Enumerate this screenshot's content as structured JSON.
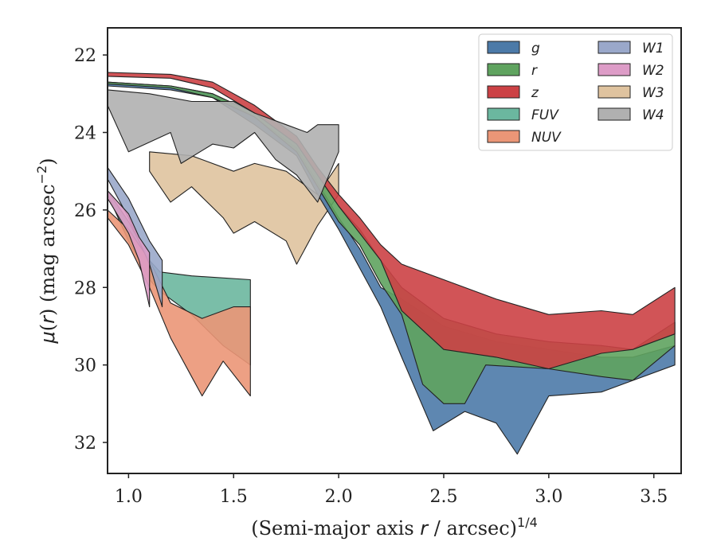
{
  "chart_data": {
    "type": "area",
    "xlabel": "(Semi-major axis r / arcsec)^1/4",
    "ylabel": "μ(r) (mag arcsec^−2)",
    "xlim": [
      0.9,
      3.63
    ],
    "ylim": [
      32.8,
      21.3
    ],
    "y_inverted": true,
    "xticks": [
      "1.0",
      "1.5",
      "2.0",
      "2.5",
      "3.0",
      "3.5"
    ],
    "yticks": [
      "22",
      "24",
      "26",
      "28",
      "30",
      "32"
    ],
    "xtick_values": [
      1.0,
      1.5,
      2.0,
      2.5,
      3.0,
      3.5
    ],
    "ytick_values": [
      22,
      24,
      26,
      28,
      30,
      32
    ],
    "grid": false,
    "legend_position": "top-right",
    "legend_columns": 2,
    "series": [
      {
        "name": "g",
        "color": "#4c7aa8",
        "upper": [
          [
            0.9,
            22.7
          ],
          [
            1.2,
            22.8
          ],
          [
            1.4,
            23.0
          ],
          [
            1.6,
            23.6
          ],
          [
            1.8,
            24.4
          ],
          [
            1.9,
            25.3
          ],
          [
            2.0,
            26.2
          ],
          [
            2.1,
            27.0
          ],
          [
            2.2,
            28.0
          ],
          [
            2.3,
            28.3
          ],
          [
            2.5,
            29.0
          ],
          [
            2.75,
            29.4
          ],
          [
            3.0,
            29.6
          ],
          [
            3.25,
            29.8
          ],
          [
            3.4,
            29.8
          ],
          [
            3.6,
            29.5
          ]
        ],
        "lower": [
          [
            0.9,
            22.8
          ],
          [
            1.2,
            22.9
          ],
          [
            1.4,
            23.1
          ],
          [
            1.6,
            23.8
          ],
          [
            1.8,
            24.6
          ],
          [
            1.9,
            25.6
          ],
          [
            2.0,
            26.5
          ],
          [
            2.1,
            27.5
          ],
          [
            2.2,
            28.5
          ],
          [
            2.3,
            29.8
          ],
          [
            2.45,
            31.7
          ],
          [
            2.6,
            31.2
          ],
          [
            2.75,
            31.5
          ],
          [
            2.85,
            32.3
          ],
          [
            3.0,
            30.8
          ],
          [
            3.25,
            30.7
          ],
          [
            3.4,
            30.4
          ],
          [
            3.6,
            30.0
          ]
        ]
      },
      {
        "name": "r",
        "color": "#5fa35f",
        "upper": [
          [
            0.9,
            22.7
          ],
          [
            1.2,
            22.8
          ],
          [
            1.4,
            23.0
          ],
          [
            1.6,
            23.5
          ],
          [
            1.8,
            24.3
          ],
          [
            1.9,
            25.1
          ],
          [
            2.0,
            25.9
          ],
          [
            2.1,
            26.5
          ],
          [
            2.2,
            27.3
          ],
          [
            2.3,
            28.0
          ],
          [
            2.5,
            28.8
          ],
          [
            2.75,
            29.2
          ],
          [
            3.0,
            29.4
          ],
          [
            3.25,
            29.5
          ],
          [
            3.4,
            29.6
          ],
          [
            3.6,
            28.9
          ]
        ],
        "lower": [
          [
            0.9,
            22.75
          ],
          [
            1.2,
            22.85
          ],
          [
            1.4,
            23.1
          ],
          [
            1.6,
            23.6
          ],
          [
            1.8,
            24.5
          ],
          [
            1.9,
            25.4
          ],
          [
            2.0,
            26.3
          ],
          [
            2.1,
            26.9
          ],
          [
            2.2,
            27.9
          ],
          [
            2.3,
            28.7
          ],
          [
            2.4,
            30.5
          ],
          [
            2.5,
            31.0
          ],
          [
            2.6,
            31.0
          ],
          [
            2.7,
            30.0
          ],
          [
            3.0,
            30.1
          ],
          [
            3.25,
            30.3
          ],
          [
            3.4,
            30.4
          ],
          [
            3.6,
            29.5
          ]
        ]
      },
      {
        "name": "z",
        "color": "#cc4145",
        "upper": [
          [
            0.9,
            22.45
          ],
          [
            1.2,
            22.5
          ],
          [
            1.4,
            22.7
          ],
          [
            1.6,
            23.3
          ],
          [
            1.8,
            24.1
          ],
          [
            1.9,
            24.9
          ],
          [
            2.0,
            25.6
          ],
          [
            2.1,
            26.2
          ],
          [
            2.2,
            26.9
          ],
          [
            2.3,
            27.4
          ],
          [
            2.5,
            27.8
          ],
          [
            2.75,
            28.3
          ],
          [
            3.0,
            28.7
          ],
          [
            3.25,
            28.6
          ],
          [
            3.4,
            28.7
          ],
          [
            3.6,
            28.0
          ]
        ],
        "lower": [
          [
            0.9,
            22.55
          ],
          [
            1.2,
            22.6
          ],
          [
            1.4,
            22.85
          ],
          [
            1.6,
            23.5
          ],
          [
            1.8,
            24.3
          ],
          [
            1.9,
            25.1
          ],
          [
            2.0,
            25.9
          ],
          [
            2.1,
            26.6
          ],
          [
            2.2,
            27.3
          ],
          [
            2.3,
            28.6
          ],
          [
            2.5,
            29.6
          ],
          [
            2.75,
            29.8
          ],
          [
            3.0,
            30.1
          ],
          [
            3.25,
            29.7
          ],
          [
            3.4,
            29.6
          ],
          [
            3.6,
            29.2
          ]
        ]
      },
      {
        "name": "FUV",
        "color": "#6bb79f",
        "upper": [
          [
            0.9,
            25.5
          ],
          [
            1.0,
            26.3
          ],
          [
            1.1,
            27.3
          ],
          [
            1.15,
            27.6
          ],
          [
            1.3,
            27.7
          ],
          [
            1.58,
            27.8
          ]
        ],
        "lower": [
          [
            0.9,
            25.6
          ],
          [
            1.0,
            26.8
          ],
          [
            1.1,
            27.8
          ],
          [
            1.15,
            28.1
          ],
          [
            1.3,
            28.7
          ],
          [
            1.45,
            29.5
          ],
          [
            1.58,
            30.0
          ]
        ]
      },
      {
        "name": "NUV",
        "color": "#eb9677",
        "upper": [
          [
            0.9,
            26.0
          ],
          [
            1.0,
            26.5
          ],
          [
            1.1,
            27.3
          ],
          [
            1.2,
            28.4
          ],
          [
            1.35,
            28.8
          ],
          [
            1.5,
            28.5
          ],
          [
            1.58,
            28.5
          ]
        ],
        "lower": [
          [
            0.9,
            26.2
          ],
          [
            1.0,
            26.9
          ],
          [
            1.1,
            28.0
          ],
          [
            1.2,
            29.3
          ],
          [
            1.3,
            30.3
          ],
          [
            1.35,
            30.8
          ],
          [
            1.45,
            29.9
          ],
          [
            1.58,
            30.8
          ]
        ]
      },
      {
        "name": "W1",
        "color": "#9aa8ca",
        "upper": [
          [
            0.9,
            24.9
          ],
          [
            1.0,
            25.7
          ],
          [
            1.1,
            26.8
          ],
          [
            1.16,
            27.3
          ]
        ],
        "lower": [
          [
            0.9,
            25.2
          ],
          [
            1.0,
            26.2
          ],
          [
            1.1,
            27.4
          ],
          [
            1.16,
            28.5
          ]
        ]
      },
      {
        "name": "W2",
        "color": "#dd9cc7",
        "upper": [
          [
            0.9,
            25.5
          ],
          [
            1.0,
            26.1
          ],
          [
            1.05,
            26.7
          ],
          [
            1.1,
            27.1
          ]
        ],
        "lower": [
          [
            0.9,
            25.7
          ],
          [
            1.0,
            26.6
          ],
          [
            1.05,
            27.3
          ],
          [
            1.1,
            28.5
          ]
        ]
      },
      {
        "name": "W3",
        "color": "#dfc39f",
        "upper": [
          [
            1.1,
            24.5
          ],
          [
            1.3,
            24.6
          ],
          [
            1.5,
            25.0
          ],
          [
            1.6,
            24.8
          ],
          [
            1.75,
            25.0
          ],
          [
            1.9,
            25.6
          ],
          [
            2.0,
            24.8
          ]
        ],
        "lower": [
          [
            1.1,
            25.0
          ],
          [
            1.2,
            25.8
          ],
          [
            1.3,
            25.4
          ],
          [
            1.45,
            26.2
          ],
          [
            1.5,
            26.6
          ],
          [
            1.6,
            26.3
          ],
          [
            1.75,
            26.8
          ],
          [
            1.8,
            27.4
          ],
          [
            1.9,
            26.4
          ],
          [
            2.0,
            25.6
          ]
        ]
      },
      {
        "name": "W4",
        "color": "#b0b0b0",
        "upper": [
          [
            0.9,
            22.9
          ],
          [
            1.1,
            23.0
          ],
          [
            1.3,
            23.2
          ],
          [
            1.5,
            23.2
          ],
          [
            1.6,
            23.5
          ],
          [
            1.75,
            23.8
          ],
          [
            1.85,
            24.0
          ],
          [
            1.9,
            23.8
          ],
          [
            1.95,
            23.8
          ],
          [
            2.0,
            23.8
          ]
        ],
        "lower": [
          [
            0.9,
            23.3
          ],
          [
            1.0,
            24.5
          ],
          [
            1.2,
            24.0
          ],
          [
            1.25,
            24.8
          ],
          [
            1.4,
            24.3
          ],
          [
            1.5,
            24.4
          ],
          [
            1.6,
            24.0
          ],
          [
            1.7,
            24.7
          ],
          [
            1.8,
            25.1
          ],
          [
            1.9,
            25.8
          ],
          [
            2.0,
            24.5
          ]
        ]
      }
    ]
  }
}
